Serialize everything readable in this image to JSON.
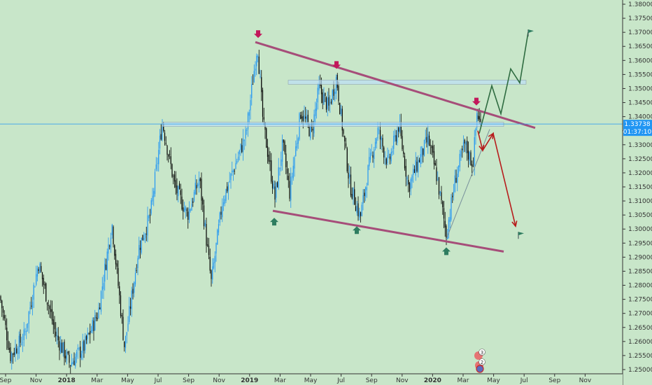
{
  "chart_data": {
    "type": "candlestick",
    "instrument_note": "",
    "x_ticks": [
      "Sep",
      "Nov",
      "2018",
      "Mar",
      "May",
      "Jul",
      "Sep",
      "Nov",
      "2019",
      "Mar",
      "May",
      "Jul",
      "Sep",
      "Nov",
      "2020",
      "Mar",
      "May",
      "Jul",
      "Sep",
      "Nov"
    ],
    "y_ticks": [
      "1.38000",
      "1.37500",
      "1.37000",
      "1.36500",
      "1.36000",
      "1.35500",
      "1.35000",
      "1.34500",
      "1.34000",
      "1.33500",
      "1.33000",
      "1.32500",
      "1.32000",
      "1.31500",
      "1.31000",
      "1.30500",
      "1.30000",
      "1.29500",
      "1.29000",
      "1.28500",
      "1.28000",
      "1.27500",
      "1.27000",
      "1.26500",
      "1.26000",
      "1.25500",
      "1.25000"
    ],
    "ylim": [
      1.2485,
      1.3815
    ],
    "current_price": {
      "value": 1.33738,
      "label": "1.33738",
      "timer": "01:37:10",
      "color": "#2196f3"
    },
    "events_badge": {
      "top": "3",
      "bottom": "2"
    },
    "colors": {
      "background": "#c8e6c9",
      "up": "#2196f3",
      "down": "#000000",
      "trendline": "#a64d79",
      "resistance_zone": "#bbdefb",
      "arrow_down": "#c2185b",
      "arrow_up": "#2e7d60",
      "projection_bull": "#2e6b40",
      "projection_bear": "#b71c1c",
      "flag": "#2e7d60"
    },
    "swing_path": [
      [
        0,
        1.276
      ],
      [
        15,
        1.255
      ],
      [
        35,
        1.262
      ],
      [
        55,
        1.288
      ],
      [
        80,
        1.262
      ],
      [
        100,
        1.252
      ],
      [
        120,
        1.258
      ],
      [
        140,
        1.27
      ],
      [
        160,
        1.302
      ],
      [
        178,
        1.258
      ],
      [
        198,
        1.293
      ],
      [
        215,
        1.305
      ],
      [
        232,
        1.338
      ],
      [
        250,
        1.315
      ],
      [
        268,
        1.305
      ],
      [
        285,
        1.318
      ],
      [
        302,
        1.281
      ],
      [
        318,
        1.31
      ],
      [
        335,
        1.322
      ],
      [
        352,
        1.334
      ],
      [
        368,
        1.366
      ],
      [
        376,
        1.338
      ],
      [
        393,
        1.311
      ],
      [
        404,
        1.33
      ],
      [
        414,
        1.313
      ],
      [
        430,
        1.342
      ],
      [
        445,
        1.334
      ],
      [
        456,
        1.35
      ],
      [
        470,
        1.343
      ],
      [
        481,
        1.354
      ],
      [
        488,
        1.339
      ],
      [
        500,
        1.316
      ],
      [
        515,
        1.304
      ],
      [
        527,
        1.322
      ],
      [
        540,
        1.335
      ],
      [
        555,
        1.323
      ],
      [
        570,
        1.337
      ],
      [
        584,
        1.315
      ],
      [
        598,
        1.324
      ],
      [
        612,
        1.332
      ],
      [
        625,
        1.318
      ],
      [
        638,
        1.298
      ],
      [
        651,
        1.318
      ],
      [
        664,
        1.33
      ],
      [
        676,
        1.323
      ],
      [
        682,
        1.342
      ],
      [
        688,
        1.335
      ]
    ],
    "trendlines": [
      {
        "from": [
          365,
          1.3665
        ],
        "to": [
          765,
          1.336
        ]
      },
      {
        "from": [
          390,
          1.3065
        ],
        "to": [
          720,
          1.292
        ]
      },
      {
        "from": [
          638,
          1.2965
        ],
        "to": [
          700,
          1.3355
        ]
      }
    ],
    "zones": [
      {
        "x0": 412,
        "x1": 752,
        "y0": 1.352,
        "y1": 1.353
      },
      {
        "x0": 232,
        "x1": 720,
        "y0": 1.3365,
        "y1": 1.338
      }
    ],
    "markers_down": [
      [
        369,
        1.368
      ],
      [
        481,
        1.357
      ],
      [
        681,
        1.344
      ]
    ],
    "markers_up": [
      [
        392,
        1.304
      ],
      [
        510,
        1.301
      ],
      [
        638,
        1.2935
      ]
    ],
    "projection_bull": [
      [
        685,
        1.334
      ],
      [
        703,
        1.351
      ],
      [
        716,
        1.341
      ],
      [
        730,
        1.357
      ],
      [
        743,
        1.352
      ],
      [
        755,
        1.37
      ]
    ],
    "projection_bear": [
      [
        683,
        1.335
      ],
      [
        690,
        1.328
      ],
      [
        705,
        1.334
      ],
      [
        737,
        1.301
      ]
    ],
    "flags": [
      [
        755,
        1.371
      ],
      [
        741,
        1.299
      ]
    ]
  }
}
